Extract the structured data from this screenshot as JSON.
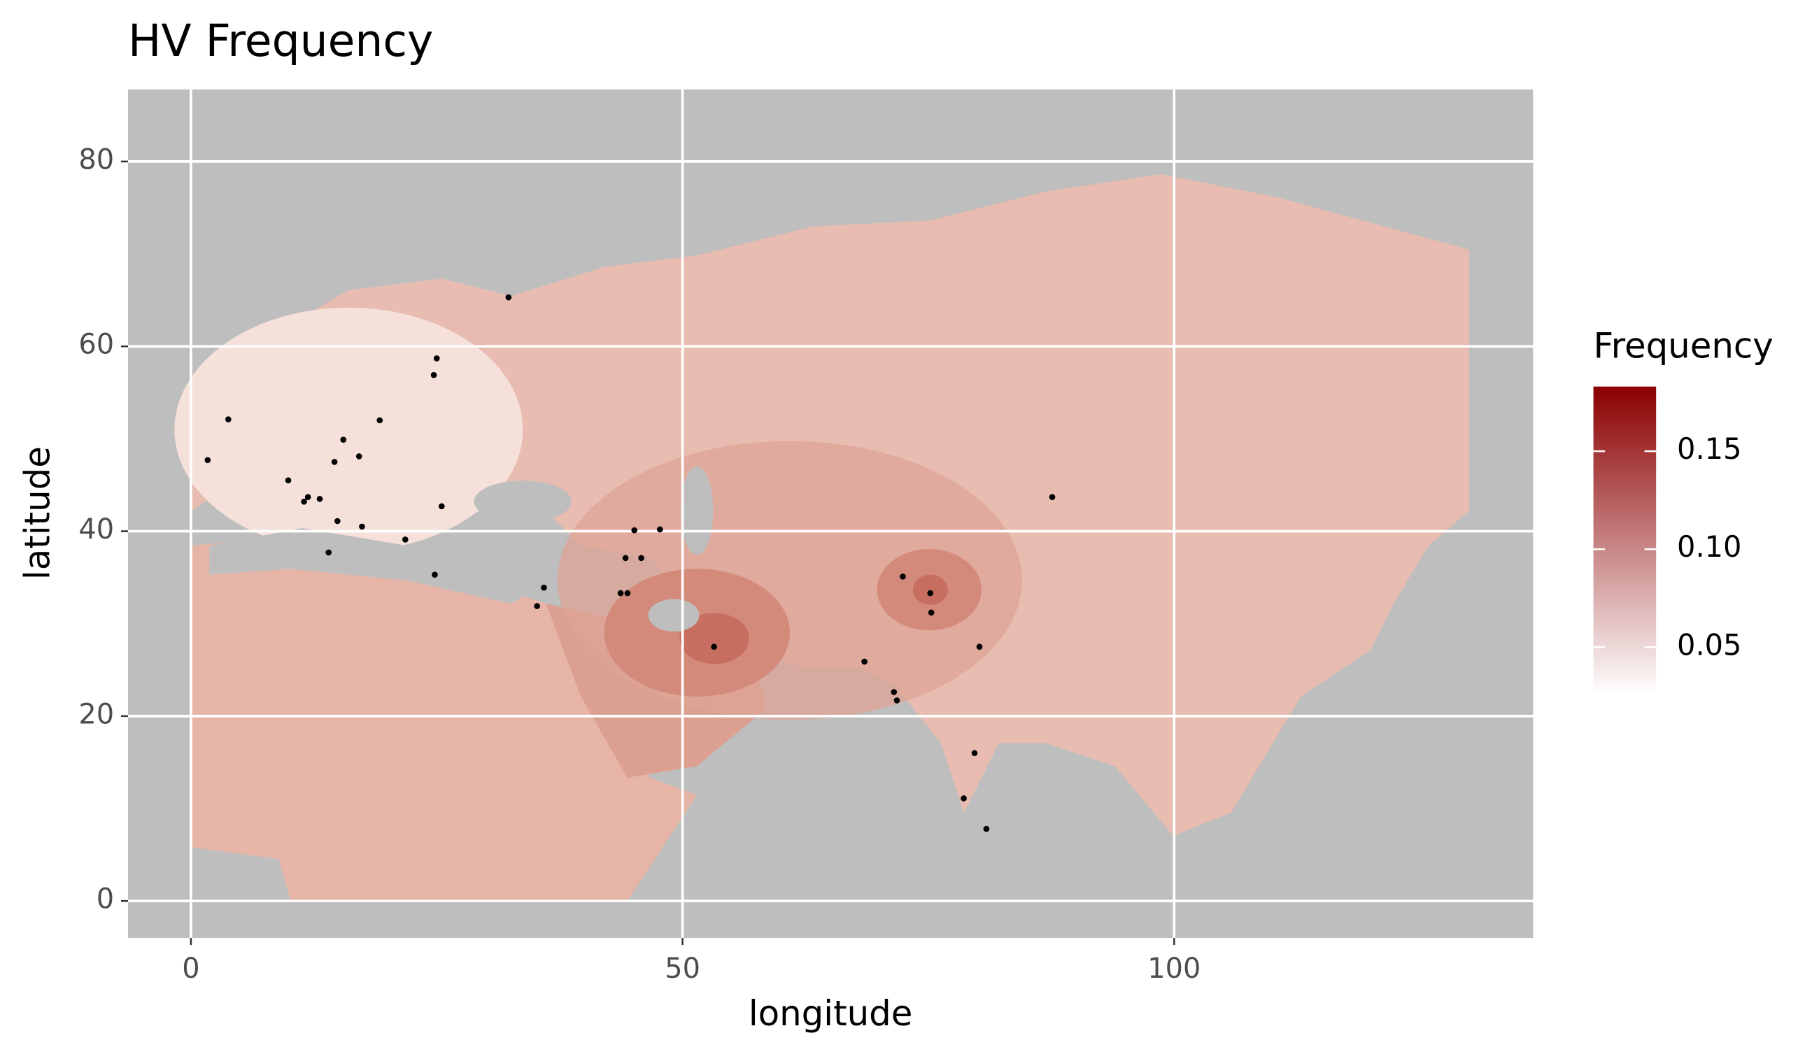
{
  "chart_data": {
    "type": "map",
    "title": "HV Frequency",
    "x_label": "longitude",
    "y_label": "latitude",
    "x": [
      1.7,
      3.8,
      9.9,
      11.5,
      11.9,
      13.1,
      14.0,
      14.6,
      14.9,
      15.5,
      17.1,
      17.4,
      19.2,
      21.8,
      24.7,
      25.0,
      24.8,
      25.5,
      32.3,
      35.2,
      35.9,
      43.7,
      44.4,
      44.2,
      45.1,
      45.8,
      47.7,
      53.2,
      68.5,
      71.5,
      71.8,
      72.4,
      75.2,
      75.3,
      80.2,
      79.7,
      78.6,
      80.9,
      87.6
    ],
    "y": [
      47.7,
      52.1,
      45.5,
      43.2,
      43.7,
      43.5,
      37.7,
      47.5,
      41.1,
      49.9,
      48.1,
      40.5,
      52.0,
      39.1,
      56.9,
      58.7,
      35.3,
      42.7,
      65.3,
      31.9,
      33.9,
      33.3,
      33.3,
      37.1,
      40.1,
      37.1,
      40.2,
      27.5,
      25.9,
      22.6,
      21.7,
      35.1,
      33.3,
      31.2,
      27.5,
      16.0,
      11.1,
      7.8,
      43.7
    ],
    "point_color": "#000000",
    "panel_color": "#bebebe",
    "xlim": [
      -6.4,
      136.5
    ],
    "ylim": [
      -4,
      87.8
    ],
    "xticks": [
      0,
      50,
      100
    ],
    "yticks": [
      0,
      20,
      40,
      60,
      80
    ],
    "grid": true,
    "legend": {
      "title": "Frequency",
      "position": "right",
      "limits": [
        0.026,
        0.183
      ],
      "ticks": [
        0.05,
        {
          "value": 0.1,
          "label": "0.10"
        },
        0.15
      ],
      "low_color": "#ffffff",
      "high_color": "#8b0000"
    }
  }
}
